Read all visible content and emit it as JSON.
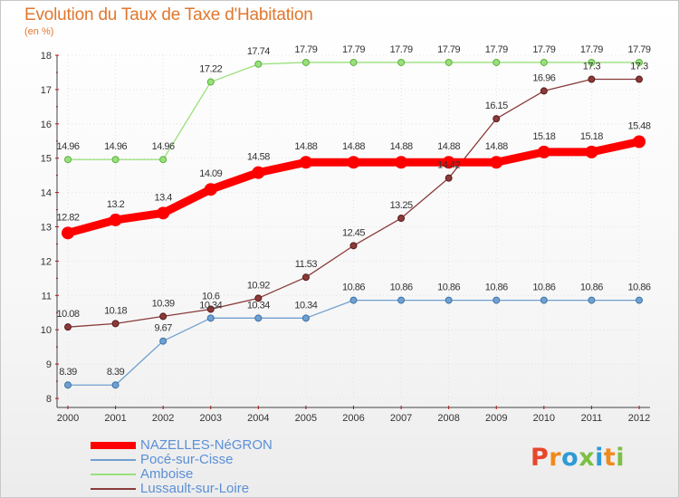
{
  "title": "Evolution du Taux de Taxe d'Habitation",
  "subtitle": "(en %)",
  "logo_text": "Proxiti",
  "chart_data": {
    "type": "line",
    "x": [
      "2000",
      "2001",
      "2002",
      "2003",
      "2004",
      "2005",
      "2006",
      "2007",
      "2008",
      "2009",
      "2010",
      "2011",
      "2012"
    ],
    "ylim": [
      8,
      18
    ],
    "yticks": [
      8,
      9,
      10,
      11,
      12,
      13,
      14,
      15,
      16,
      17,
      18
    ],
    "legend_placement": "bottom",
    "series": [
      {
        "name": "NAZELLES-NéGRON",
        "color": "#ff0000",
        "values": [
          12.82,
          13.2,
          13.4,
          14.09,
          14.58,
          14.88,
          14.88,
          14.88,
          14.88,
          14.88,
          15.18,
          15.18,
          15.48
        ],
        "labels": [
          "12.82",
          "13.2",
          "13.4",
          "14.09",
          "14.58",
          "14.88",
          "14.88",
          "14.88",
          "14.88",
          "14.88",
          "15.18",
          "15.18",
          "15.48"
        ]
      },
      {
        "name": "Pocé-sur-Cisse",
        "color": "#6fa0cf",
        "values": [
          8.39,
          8.39,
          9.67,
          10.34,
          10.34,
          10.34,
          10.86,
          10.86,
          10.86,
          10.86,
          10.86,
          10.86,
          10.86
        ],
        "labels": [
          "8.39",
          "8.39",
          "9.67",
          "10.34",
          "10.34",
          "10.34",
          "10.86",
          "10.86",
          "10.86",
          "10.86",
          "10.86",
          "10.86",
          "10.86"
        ]
      },
      {
        "name": "Amboise",
        "color": "#99e07a",
        "values": [
          14.96,
          14.96,
          14.96,
          17.22,
          17.74,
          17.79,
          17.79,
          17.79,
          17.79,
          17.79,
          17.79,
          17.79,
          17.79
        ],
        "labels": [
          "14.96",
          "14.96",
          "14.96",
          "17.22",
          "17.74",
          "17.79",
          "17.79",
          "17.79",
          "17.79",
          "17.79",
          "17.79",
          "17.79",
          "17.79"
        ]
      },
      {
        "name": "Lussault-sur-Loire",
        "color": "#8b3a3a",
        "values": [
          10.08,
          10.18,
          10.39,
          10.6,
          10.92,
          11.53,
          12.45,
          13.25,
          14.42,
          16.15,
          16.96,
          17.3,
          17.3
        ],
        "labels": [
          "10.08",
          "10.18",
          "10.39",
          "10.6",
          "10.92",
          "11.53",
          "12.45",
          "13.25",
          "14.42",
          "16.15",
          "16.96",
          "17.3",
          "17.3"
        ]
      }
    ]
  }
}
